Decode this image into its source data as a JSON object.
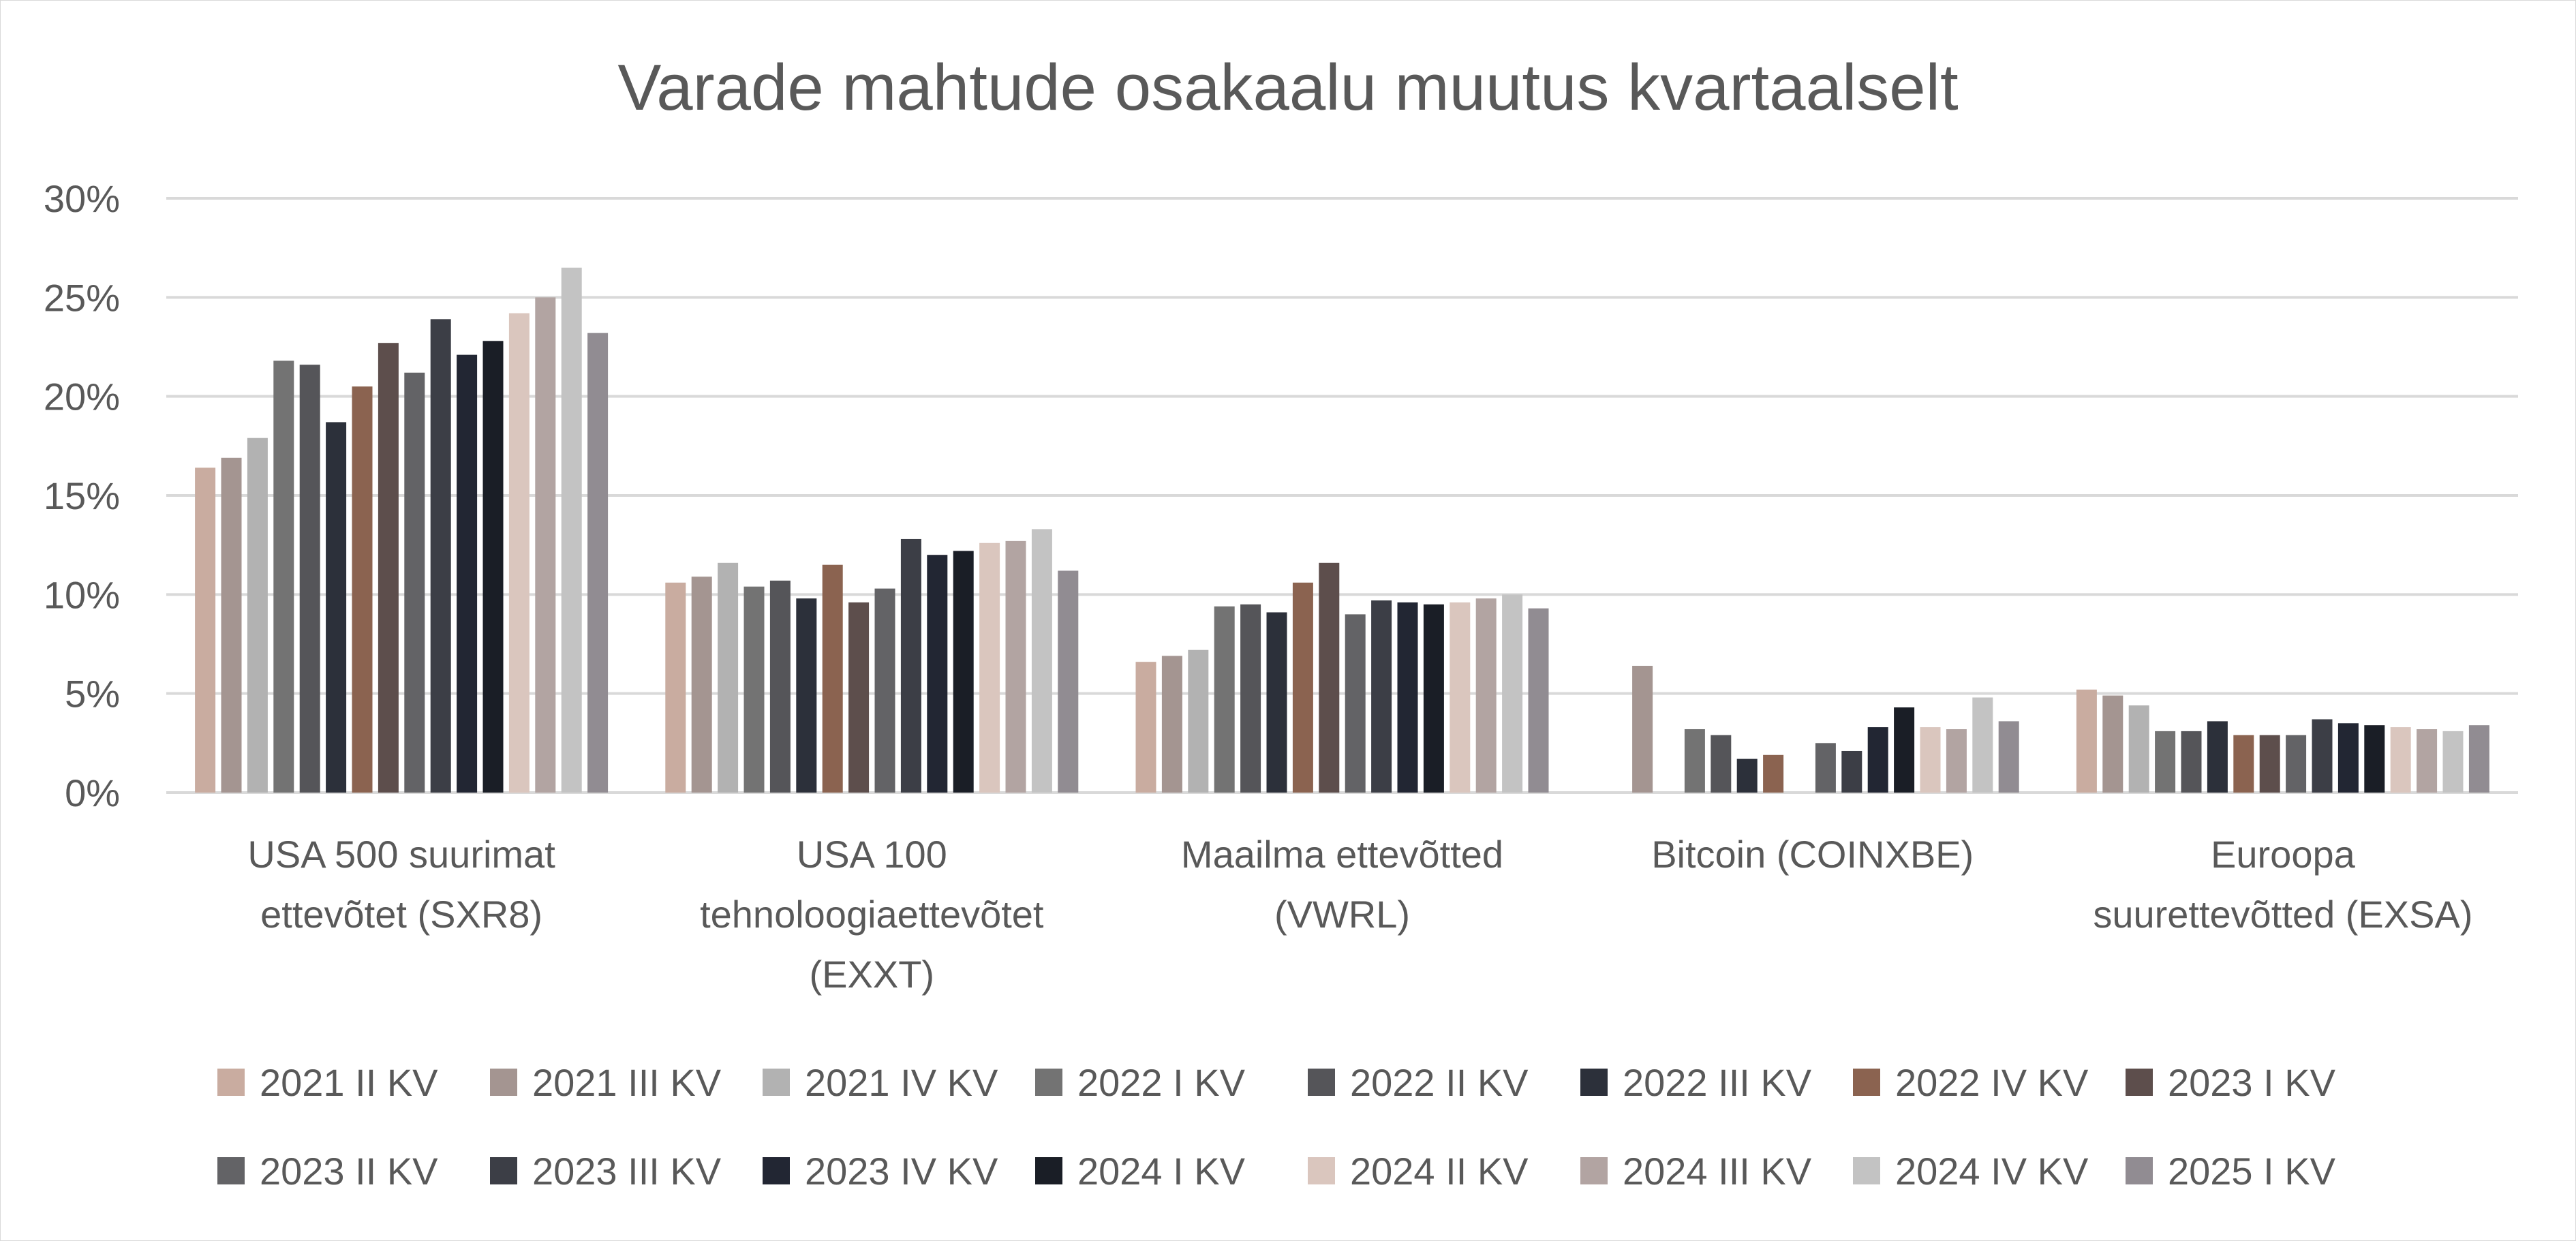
{
  "chart_data": {
    "type": "bar",
    "title": "Varade mahtude osakaalu muutus kvartaalselt",
    "xlabel": "",
    "ylabel": "",
    "ylim": [
      0,
      30
    ],
    "yticks": [
      "0%",
      "5%",
      "10%",
      "15%",
      "20%",
      "25%",
      "30%"
    ],
    "grid": true,
    "legend_position": "bottom",
    "categories": [
      [
        "USA 500 suurimat",
        "ettevõtet (SXR8)"
      ],
      [
        "USA 100",
        "tehnoloogiaettevõtet",
        "(EXXT)"
      ],
      [
        "Maailma ettevõtted",
        "(VWRL)"
      ],
      [
        "Bitcoin (COINXBE)"
      ],
      [
        "Euroopa",
        "suurettevõtted (EXSA)"
      ]
    ],
    "series": [
      {
        "name": "2021 II KV",
        "color": "#c9aca0",
        "values": [
          16.4,
          10.6,
          6.6,
          null,
          5.2
        ]
      },
      {
        "name": "2021 III KV",
        "color": "#a49591",
        "values": [
          16.9,
          10.9,
          6.9,
          6.4,
          4.9
        ]
      },
      {
        "name": "2021 IV KV",
        "color": "#b2b2b2",
        "values": [
          17.9,
          11.6,
          7.2,
          null,
          4.4
        ]
      },
      {
        "name": "2022 I KV",
        "color": "#737373",
        "values": [
          21.8,
          10.4,
          9.4,
          3.2,
          3.1
        ]
      },
      {
        "name": "2022 II KV",
        "color": "#555559",
        "values": [
          21.6,
          10.7,
          9.5,
          2.9,
          3.1
        ]
      },
      {
        "name": "2022 III KV",
        "color": "#2c303a",
        "values": [
          18.7,
          9.8,
          9.1,
          1.7,
          3.6
        ]
      },
      {
        "name": "2022 IV KV",
        "color": "#8b6350",
        "values": [
          20.5,
          11.5,
          10.6,
          1.9,
          2.9
        ]
      },
      {
        "name": "2023 I KV",
        "color": "#5d4e4c",
        "values": [
          22.7,
          9.6,
          11.6,
          null,
          2.9
        ]
      },
      {
        "name": "2023 II KV",
        "color": "#636366",
        "values": [
          21.2,
          10.3,
          9.0,
          2.5,
          2.9
        ]
      },
      {
        "name": "2023 III KV",
        "color": "#3c3e46",
        "values": [
          23.9,
          12.8,
          9.7,
          2.1,
          3.7
        ]
      },
      {
        "name": "2023 IV KV",
        "color": "#222633",
        "values": [
          22.1,
          12.0,
          9.6,
          3.3,
          3.5
        ]
      },
      {
        "name": "2024 I KV",
        "color": "#1a1e26",
        "values": [
          22.8,
          12.2,
          9.5,
          4.3,
          3.4
        ]
      },
      {
        "name": "2024 II KV",
        "color": "#dac6be",
        "values": [
          24.2,
          12.6,
          9.6,
          3.3,
          3.3
        ]
      },
      {
        "name": "2024 III KV",
        "color": "#b2a4a2",
        "values": [
          25.0,
          12.7,
          9.8,
          3.2,
          3.2
        ]
      },
      {
        "name": "2024 IV KV",
        "color": "#c3c3c3",
        "values": [
          26.5,
          13.3,
          10.0,
          4.8,
          3.1
        ]
      },
      {
        "name": "2025 I KV",
        "color": "#918c92",
        "values": [
          23.2,
          11.2,
          9.3,
          3.6,
          3.4
        ]
      }
    ]
  }
}
